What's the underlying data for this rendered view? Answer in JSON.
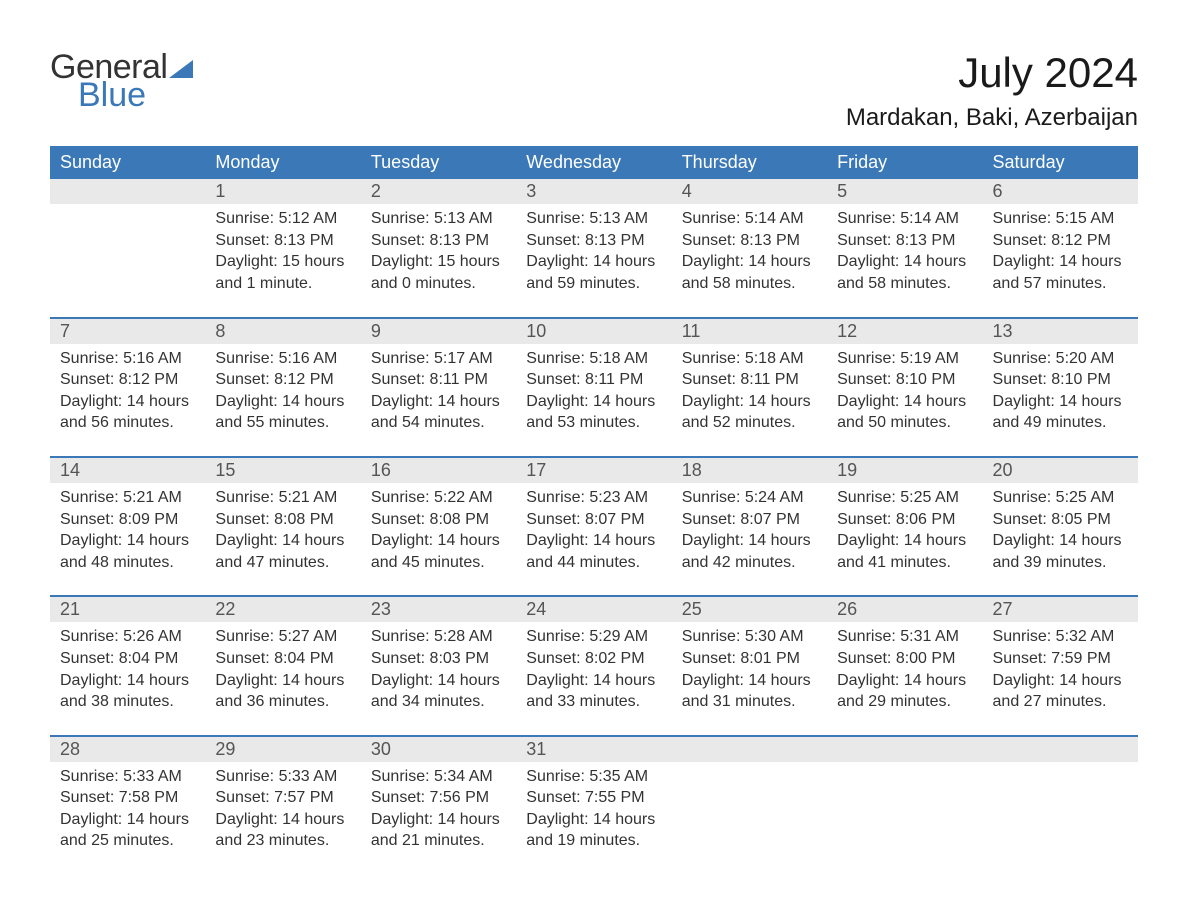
{
  "colors": {
    "brand_blue": "#3b78b8",
    "header_bg": "#3b78b8",
    "header_text": "#ffffff",
    "daynum_bg": "#e9e9e9",
    "row_divider": "#3b78b8",
    "body_text": "#333333",
    "page_bg": "#ffffff"
  },
  "logo": {
    "line1": "General",
    "line2": "Blue"
  },
  "title": "July 2024",
  "location": "Mardakan, Baki, Azerbaijan",
  "weekdays": [
    "Sunday",
    "Monday",
    "Tuesday",
    "Wednesday",
    "Thursday",
    "Friday",
    "Saturday"
  ],
  "labels": {
    "sunrise": "Sunrise: ",
    "sunset": "Sunset: ",
    "daylight": "Daylight: "
  },
  "weeks": [
    [
      null,
      {
        "n": "1",
        "sr": "5:12 AM",
        "ss": "8:13 PM",
        "dl": "15 hours and 1 minute."
      },
      {
        "n": "2",
        "sr": "5:13 AM",
        "ss": "8:13 PM",
        "dl": "15 hours and 0 minutes."
      },
      {
        "n": "3",
        "sr": "5:13 AM",
        "ss": "8:13 PM",
        "dl": "14 hours and 59 minutes."
      },
      {
        "n": "4",
        "sr": "5:14 AM",
        "ss": "8:13 PM",
        "dl": "14 hours and 58 minutes."
      },
      {
        "n": "5",
        "sr": "5:14 AM",
        "ss": "8:13 PM",
        "dl": "14 hours and 58 minutes."
      },
      {
        "n": "6",
        "sr": "5:15 AM",
        "ss": "8:12 PM",
        "dl": "14 hours and 57 minutes."
      }
    ],
    [
      {
        "n": "7",
        "sr": "5:16 AM",
        "ss": "8:12 PM",
        "dl": "14 hours and 56 minutes."
      },
      {
        "n": "8",
        "sr": "5:16 AM",
        "ss": "8:12 PM",
        "dl": "14 hours and 55 minutes."
      },
      {
        "n": "9",
        "sr": "5:17 AM",
        "ss": "8:11 PM",
        "dl": "14 hours and 54 minutes."
      },
      {
        "n": "10",
        "sr": "5:18 AM",
        "ss": "8:11 PM",
        "dl": "14 hours and 53 minutes."
      },
      {
        "n": "11",
        "sr": "5:18 AM",
        "ss": "8:11 PM",
        "dl": "14 hours and 52 minutes."
      },
      {
        "n": "12",
        "sr": "5:19 AM",
        "ss": "8:10 PM",
        "dl": "14 hours and 50 minutes."
      },
      {
        "n": "13",
        "sr": "5:20 AM",
        "ss": "8:10 PM",
        "dl": "14 hours and 49 minutes."
      }
    ],
    [
      {
        "n": "14",
        "sr": "5:21 AM",
        "ss": "8:09 PM",
        "dl": "14 hours and 48 minutes."
      },
      {
        "n": "15",
        "sr": "5:21 AM",
        "ss": "8:08 PM",
        "dl": "14 hours and 47 minutes."
      },
      {
        "n": "16",
        "sr": "5:22 AM",
        "ss": "8:08 PM",
        "dl": "14 hours and 45 minutes."
      },
      {
        "n": "17",
        "sr": "5:23 AM",
        "ss": "8:07 PM",
        "dl": "14 hours and 44 minutes."
      },
      {
        "n": "18",
        "sr": "5:24 AM",
        "ss": "8:07 PM",
        "dl": "14 hours and 42 minutes."
      },
      {
        "n": "19",
        "sr": "5:25 AM",
        "ss": "8:06 PM",
        "dl": "14 hours and 41 minutes."
      },
      {
        "n": "20",
        "sr": "5:25 AM",
        "ss": "8:05 PM",
        "dl": "14 hours and 39 minutes."
      }
    ],
    [
      {
        "n": "21",
        "sr": "5:26 AM",
        "ss": "8:04 PM",
        "dl": "14 hours and 38 minutes."
      },
      {
        "n": "22",
        "sr": "5:27 AM",
        "ss": "8:04 PM",
        "dl": "14 hours and 36 minutes."
      },
      {
        "n": "23",
        "sr": "5:28 AM",
        "ss": "8:03 PM",
        "dl": "14 hours and 34 minutes."
      },
      {
        "n": "24",
        "sr": "5:29 AM",
        "ss": "8:02 PM",
        "dl": "14 hours and 33 minutes."
      },
      {
        "n": "25",
        "sr": "5:30 AM",
        "ss": "8:01 PM",
        "dl": "14 hours and 31 minutes."
      },
      {
        "n": "26",
        "sr": "5:31 AM",
        "ss": "8:00 PM",
        "dl": "14 hours and 29 minutes."
      },
      {
        "n": "27",
        "sr": "5:32 AM",
        "ss": "7:59 PM",
        "dl": "14 hours and 27 minutes."
      }
    ],
    [
      {
        "n": "28",
        "sr": "5:33 AM",
        "ss": "7:58 PM",
        "dl": "14 hours and 25 minutes."
      },
      {
        "n": "29",
        "sr": "5:33 AM",
        "ss": "7:57 PM",
        "dl": "14 hours and 23 minutes."
      },
      {
        "n": "30",
        "sr": "5:34 AM",
        "ss": "7:56 PM",
        "dl": "14 hours and 21 minutes."
      },
      {
        "n": "31",
        "sr": "5:35 AM",
        "ss": "7:55 PM",
        "dl": "14 hours and 19 minutes."
      },
      null,
      null,
      null
    ]
  ]
}
